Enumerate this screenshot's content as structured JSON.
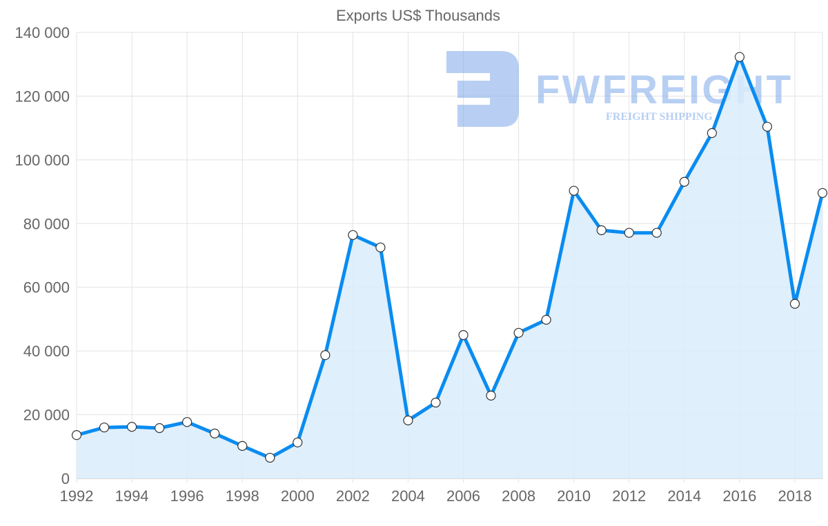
{
  "chart_data": {
    "type": "area",
    "title": "Exports US$ Thousands",
    "xlabel": "",
    "ylabel": "",
    "x": [
      1992,
      1993,
      1994,
      1995,
      1996,
      1997,
      1998,
      1999,
      2000,
      2001,
      2002,
      2003,
      2004,
      2005,
      2006,
      2007,
      2008,
      2009,
      2010,
      2011,
      2012,
      2013,
      2014,
      2015,
      2016,
      2017,
      2018,
      2019
    ],
    "values": [
      13600,
      16000,
      16200,
      15800,
      17700,
      14100,
      10200,
      6500,
      11300,
      38700,
      76400,
      72500,
      18200,
      23800,
      45000,
      26000,
      45700,
      49800,
      90300,
      77900,
      77100,
      77100,
      93100,
      108400,
      132300,
      110400,
      54800,
      89600
    ],
    "ylim": [
      0,
      140000
    ],
    "xlim": [
      1992,
      2019
    ],
    "y_ticks": [
      "0",
      "20 000",
      "40 000",
      "60 000",
      "80 000",
      "100 000",
      "120 000",
      "140 000"
    ],
    "x_ticks": [
      "1992",
      "1994",
      "1996",
      "1998",
      "2000",
      "2002",
      "2004",
      "2006",
      "2008",
      "2010",
      "2012",
      "2014",
      "2016",
      "2018"
    ],
    "grid": true,
    "line_color": "#0a8cf0",
    "fill_color": "#d9ecfc"
  },
  "watermark": {
    "brand": "FWFREIGHT",
    "tagline": "FREIGHT SHIPPING"
  }
}
